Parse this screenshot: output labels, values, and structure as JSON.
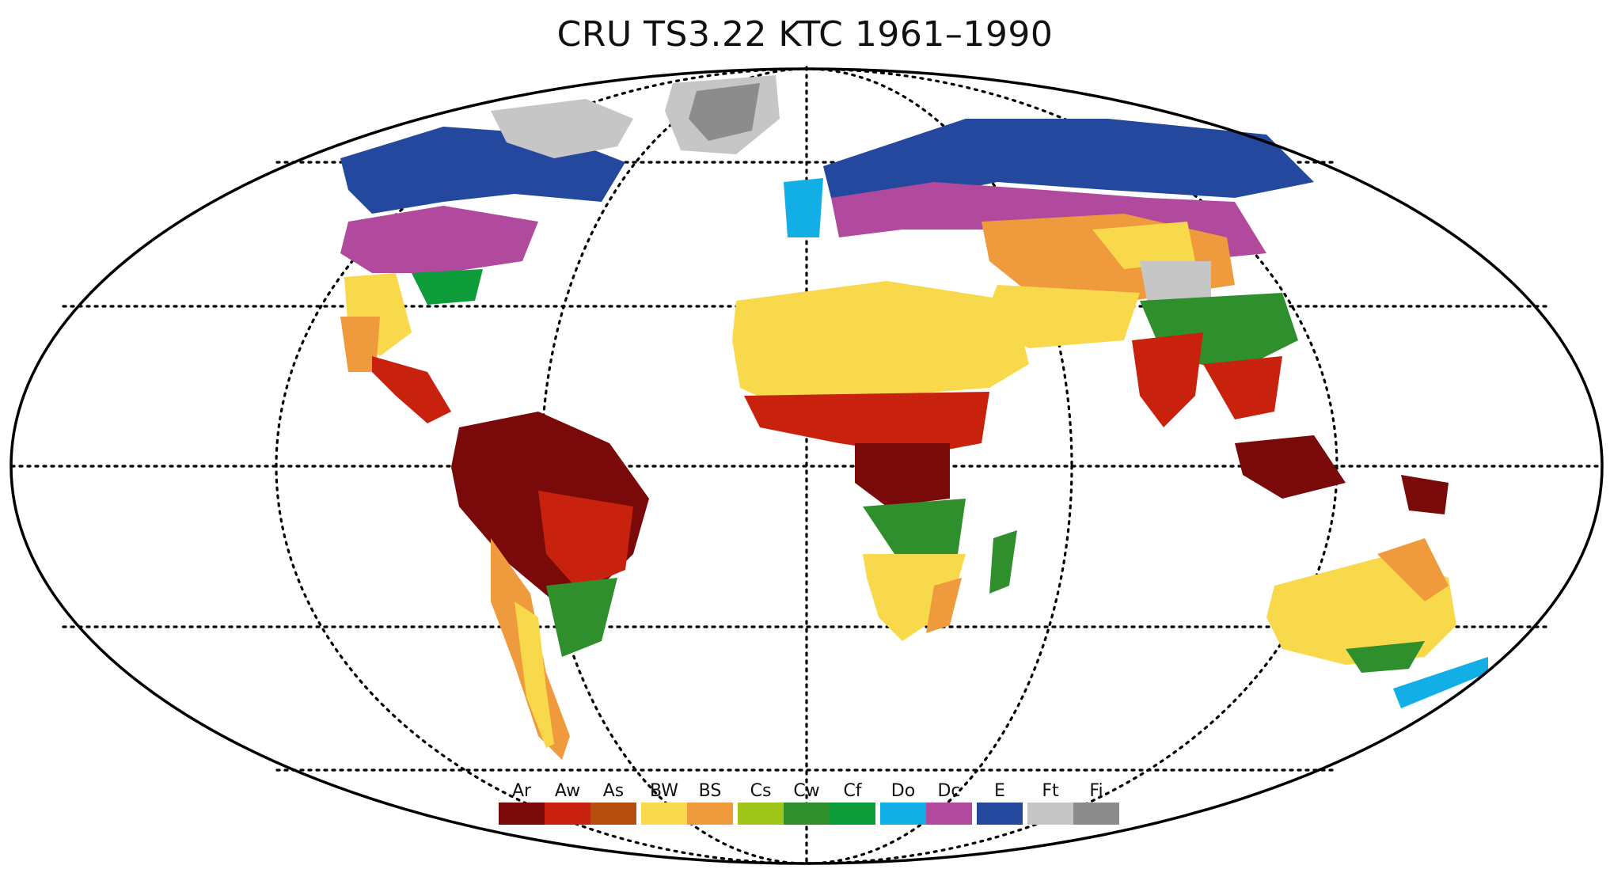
{
  "title": "CRU TS3.22 KTC 1961–1990",
  "projection": "Mollweide",
  "graticule": "dotted",
  "legend": {
    "placement": "bottom-center",
    "groups": [
      [
        {
          "code": "Ar",
          "color": "#7a0a0a"
        },
        {
          "code": "Aw",
          "color": "#c8220f"
        },
        {
          "code": "As",
          "color": "#b84d10"
        }
      ],
      [
        {
          "code": "BW",
          "color": "#f8d94b"
        },
        {
          "code": "BS",
          "color": "#ef9a3c"
        }
      ],
      [
        {
          "code": "Cs",
          "color": "#9fc41a"
        },
        {
          "code": "Cw",
          "color": "#2f8f2c"
        },
        {
          "code": "Cf",
          "color": "#0e9b3a"
        }
      ],
      [
        {
          "code": "Do",
          "color": "#12aee6"
        },
        {
          "code": "Dc",
          "color": "#b14a9d"
        }
      ],
      [
        {
          "code": "E",
          "color": "#23489d"
        }
      ],
      [
        {
          "code": "Ft",
          "color": "#c6c6c6"
        },
        {
          "code": "Fi",
          "color": "#8c8c8c"
        }
      ]
    ]
  }
}
